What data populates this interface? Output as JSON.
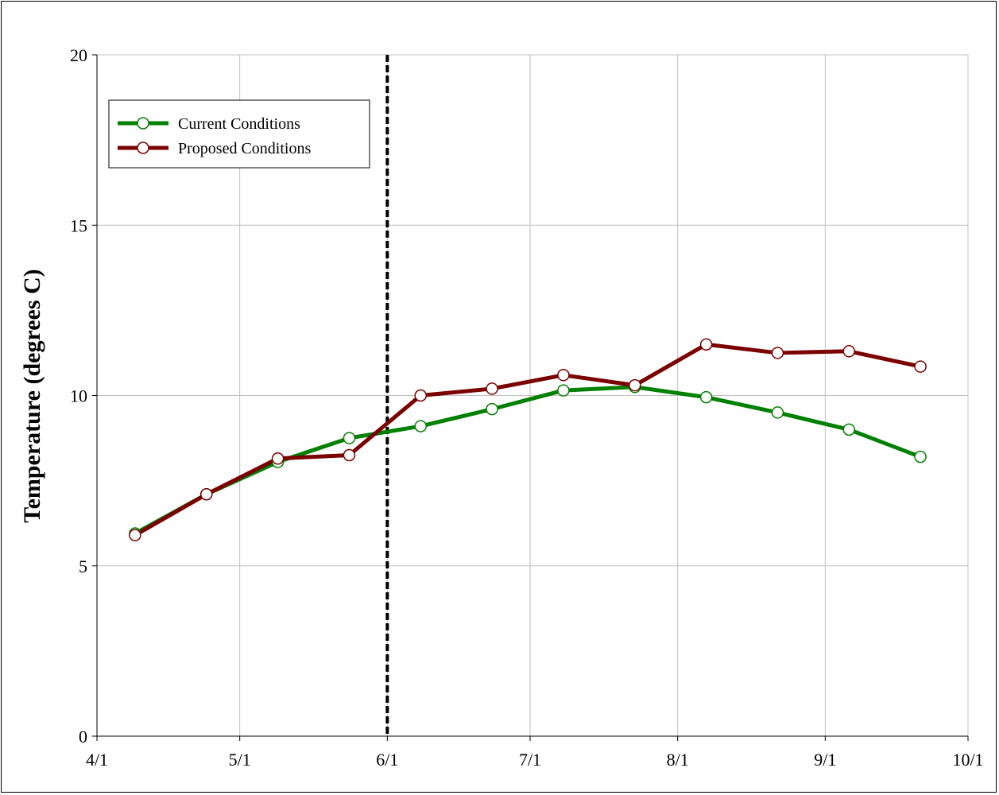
{
  "chart_data": {
    "type": "line",
    "title": "",
    "xlabel": "",
    "ylabel": "Temperature (degrees C)",
    "x_ticks": [
      "4/1",
      "5/1",
      "6/1",
      "7/1",
      "8/1",
      "9/1",
      "10/1"
    ],
    "x_range": [
      "2000-04-01",
      "2000-10-01"
    ],
    "ylim": [
      0,
      20
    ],
    "y_ticks": [
      0,
      5,
      10,
      15,
      20
    ],
    "grid": true,
    "legend_position": "top-left",
    "reference_line": {
      "x": "2000-06-01",
      "style": "dashed",
      "color": "#000000"
    },
    "series": [
      {
        "name": "Current Conditions",
        "color": "#008000",
        "points": [
          {
            "x": "2000-04-09",
            "y": 5.95
          },
          {
            "x": "2000-04-24",
            "y": 7.1
          },
          {
            "x": "2000-05-09",
            "y": 8.05
          },
          {
            "x": "2000-05-24",
            "y": 8.75
          },
          {
            "x": "2000-06-08",
            "y": 9.1
          },
          {
            "x": "2000-06-23",
            "y": 9.6
          },
          {
            "x": "2000-07-08",
            "y": 10.15
          },
          {
            "x": "2000-07-23",
            "y": 10.25
          },
          {
            "x": "2000-08-07",
            "y": 9.95
          },
          {
            "x": "2000-08-22",
            "y": 9.5
          },
          {
            "x": "2000-09-06",
            "y": 9.0
          },
          {
            "x": "2000-09-21",
            "y": 8.2
          }
        ]
      },
      {
        "name": "Proposed Conditions",
        "color": "#7b0000",
        "points": [
          {
            "x": "2000-04-09",
            "y": 5.9
          },
          {
            "x": "2000-04-24",
            "y": 7.1
          },
          {
            "x": "2000-05-09",
            "y": 8.15
          },
          {
            "x": "2000-05-24",
            "y": 8.25
          },
          {
            "x": "2000-06-08",
            "y": 10.0
          },
          {
            "x": "2000-06-23",
            "y": 10.2
          },
          {
            "x": "2000-07-08",
            "y": 10.6
          },
          {
            "x": "2000-07-23",
            "y": 10.3
          },
          {
            "x": "2000-08-07",
            "y": 11.5
          },
          {
            "x": "2000-08-22",
            "y": 11.25
          },
          {
            "x": "2000-09-06",
            "y": 11.3
          },
          {
            "x": "2000-09-21",
            "y": 10.85
          }
        ]
      }
    ]
  }
}
